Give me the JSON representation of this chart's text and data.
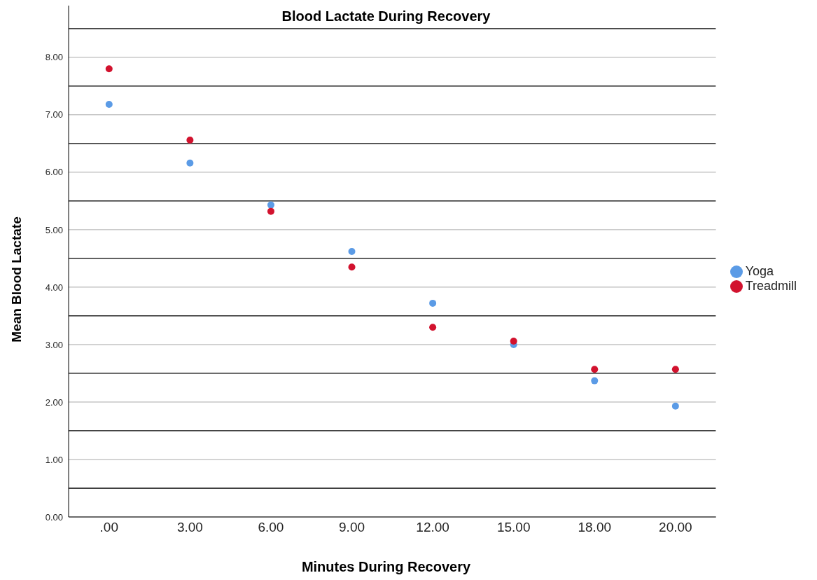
{
  "chart_data": {
    "type": "scatter",
    "title": "Blood Lactate During Recovery",
    "xlabel": "Minutes During Recovery",
    "ylabel": "Mean Blood Lactate",
    "categories": [
      ".00",
      "3.00",
      "6.00",
      "9.00",
      "12.00",
      "15.00",
      "18.00",
      "20.00"
    ],
    "series": [
      {
        "name": "Yoga",
        "color": "#5b9be6",
        "values": [
          7.18,
          6.16,
          5.43,
          4.62,
          3.72,
          3.0,
          2.37,
          1.93
        ]
      },
      {
        "name": "Treadmill",
        "color": "#d2122e",
        "values": [
          7.8,
          6.56,
          5.32,
          4.35,
          3.3,
          3.06,
          2.57,
          2.57
        ]
      }
    ],
    "ylim": [
      0,
      8.9
    ],
    "yticks": [
      {
        "value": 0,
        "label": "0.00"
      },
      {
        "value": 1,
        "label": "1.00"
      },
      {
        "value": 2,
        "label": "2.00"
      },
      {
        "value": 3,
        "label": "3.00"
      },
      {
        "value": 4,
        "label": "4.00"
      },
      {
        "value": 5,
        "label": "5.00"
      },
      {
        "value": 6,
        "label": "6.00"
      },
      {
        "value": 7,
        "label": "7.00"
      },
      {
        "value": 8,
        "label": "8.00"
      }
    ],
    "ref_lines": [
      {
        "axis": "y",
        "value": 0.5,
        "color": "#000000"
      },
      {
        "axis": "y",
        "value": 1.5,
        "color": "#000000"
      },
      {
        "axis": "y",
        "value": 2.5,
        "color": "#000000"
      },
      {
        "axis": "y",
        "value": 3.5,
        "color": "#000000"
      },
      {
        "axis": "y",
        "value": 4.5,
        "color": "#000000"
      },
      {
        "axis": "y",
        "value": 5.5,
        "color": "#000000"
      },
      {
        "axis": "y",
        "value": 6.5,
        "color": "#000000"
      },
      {
        "axis": "y",
        "value": 7.5,
        "color": "#000000"
      },
      {
        "axis": "y",
        "value": 8.5,
        "color": "#000000"
      }
    ],
    "grid": "y",
    "legend": "right",
    "marker": "circle"
  }
}
